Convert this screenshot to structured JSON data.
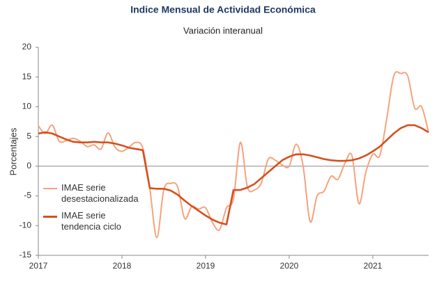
{
  "chart_data": {
    "type": "line",
    "title": "Indice Mensual de  Actividad Económica",
    "subtitle": "Variación interanual",
    "y_label": "Porcentajes",
    "categories": [
      "2017",
      null,
      null,
      null,
      null,
      null,
      null,
      null,
      null,
      null,
      null,
      null,
      "2018",
      null,
      null,
      null,
      null,
      null,
      null,
      null,
      null,
      null,
      null,
      null,
      "2019",
      null,
      null,
      null,
      null,
      null,
      null,
      null,
      null,
      null,
      null,
      null,
      "2020",
      null,
      null,
      null,
      null,
      null,
      null,
      null,
      null,
      null,
      null,
      null,
      "2021",
      null,
      null,
      null,
      null,
      null,
      null,
      null,
      null
    ],
    "series": [
      {
        "name": "IMAE serie desestacionalizada",
        "color": "#f7a27c",
        "smooth": true,
        "values": [
          6.8,
          5.5,
          6.9,
          4.2,
          4.3,
          4.7,
          4.2,
          3.3,
          3.6,
          2.9,
          5.6,
          3.2,
          2.5,
          3.2,
          4.0,
          3.0,
          -3.8,
          -12.0,
          -4.0,
          -2.9,
          -3.5,
          -8.8,
          -6.8,
          -7.2,
          -7.0,
          -9.5,
          -10.7,
          -7.0,
          -5.5,
          4.0,
          -3.5,
          -4.0,
          -2.8,
          1.2,
          1.0,
          0.2,
          0.0,
          3.7,
          0.0,
          -9.3,
          -5.0,
          -4.2,
          -1.7,
          -2.2,
          0.5,
          1.8,
          -6.3,
          -1.0,
          2.0,
          1.8,
          8.0,
          15.2,
          15.6,
          15.2,
          9.8,
          10.0,
          5.7
        ]
      },
      {
        "name": "IMAE serie tendencia ciclo",
        "color": "#d4501e",
        "smooth": false,
        "values": [
          5.5,
          5.7,
          5.5,
          5.0,
          4.5,
          4.1,
          4.0,
          4.0,
          4.1,
          4.0,
          4.0,
          3.8,
          3.5,
          3.1,
          2.9,
          2.7,
          -3.7,
          -3.8,
          -3.8,
          -4.1,
          -4.8,
          -5.8,
          -6.7,
          -7.5,
          -8.3,
          -9.0,
          -9.5,
          -9.8,
          -4.0,
          -4.0,
          -3.6,
          -3.0,
          -2.0,
          -1.0,
          0.0,
          1.0,
          1.6,
          2.0,
          2.0,
          1.8,
          1.5,
          1.2,
          1.0,
          0.9,
          0.9,
          1.0,
          1.3,
          1.8,
          2.5,
          3.3,
          4.4,
          5.5,
          6.4,
          6.9,
          6.9,
          6.4,
          5.7
        ]
      }
    ],
    "ylim": [
      -15,
      20
    ],
    "yticks": [
      -15,
      -10,
      -5,
      0,
      5,
      10,
      15,
      20
    ],
    "legend": "left"
  }
}
